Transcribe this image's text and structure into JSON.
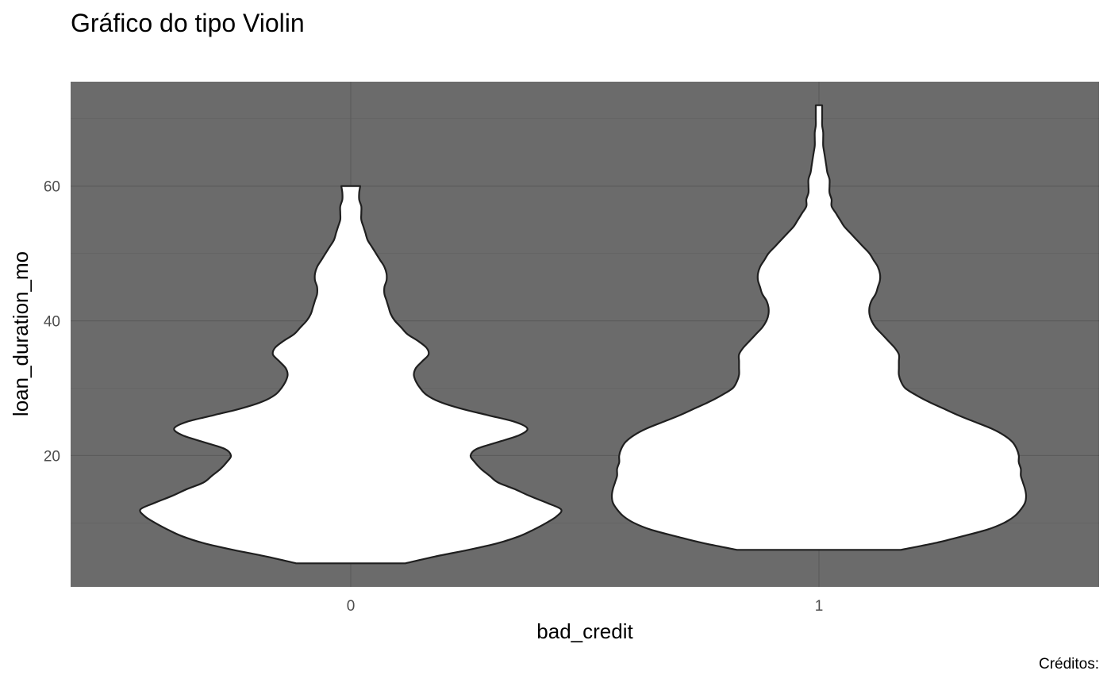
{
  "chart_data": {
    "type": "violin",
    "title": "Gráfico do tipo Violin",
    "xlabel": "bad_credit",
    "ylabel": "loan_duration_mo",
    "caption": "Créditos:",
    "categories": [
      "0",
      "1"
    ],
    "ylim": [
      0.5,
      75.5
    ],
    "y_ticks": [
      20,
      40,
      60
    ],
    "y_minor_ticks": [
      10,
      30,
      50,
      70
    ],
    "grid": true,
    "panel_background": "#6b6b6b",
    "violin_fill": "#ffffff",
    "violin_outline": "#1f1f1f",
    "series": [
      {
        "category": "0",
        "y_min": 4,
        "y_max": 60,
        "density": [
          [
            4,
            0.26
          ],
          [
            5,
            0.4
          ],
          [
            6,
            0.56
          ],
          [
            7,
            0.7
          ],
          [
            8,
            0.8
          ],
          [
            9,
            0.87
          ],
          [
            10,
            0.93
          ],
          [
            11,
            0.98
          ],
          [
            12,
            1.0
          ],
          [
            13,
            0.93
          ],
          [
            14,
            0.85
          ],
          [
            15,
            0.78
          ],
          [
            16,
            0.7
          ],
          [
            17,
            0.66
          ],
          [
            18,
            0.62
          ],
          [
            19,
            0.59
          ],
          [
            20,
            0.57
          ],
          [
            21,
            0.6
          ],
          [
            22,
            0.7
          ],
          [
            23,
            0.8
          ],
          [
            24,
            0.84
          ],
          [
            25,
            0.78
          ],
          [
            26,
            0.65
          ],
          [
            27,
            0.52
          ],
          [
            28,
            0.42
          ],
          [
            29,
            0.36
          ],
          [
            30,
            0.33
          ],
          [
            31,
            0.31
          ],
          [
            32,
            0.3
          ],
          [
            33,
            0.31
          ],
          [
            34,
            0.34
          ],
          [
            35,
            0.37
          ],
          [
            36,
            0.36
          ],
          [
            37,
            0.32
          ],
          [
            38,
            0.27
          ],
          [
            39,
            0.24
          ],
          [
            40,
            0.21
          ],
          [
            41,
            0.19
          ],
          [
            42,
            0.18
          ],
          [
            43,
            0.17
          ],
          [
            44,
            0.16
          ],
          [
            45,
            0.16
          ],
          [
            46,
            0.17
          ],
          [
            47,
            0.17
          ],
          [
            48,
            0.16
          ],
          [
            49,
            0.14
          ],
          [
            50,
            0.12
          ],
          [
            51,
            0.1
          ],
          [
            52,
            0.08
          ],
          [
            53,
            0.07
          ],
          [
            54,
            0.06
          ],
          [
            55,
            0.05
          ],
          [
            56,
            0.05
          ],
          [
            57,
            0.05
          ],
          [
            58,
            0.04
          ],
          [
            59,
            0.04
          ],
          [
            60,
            0.045
          ]
        ]
      },
      {
        "category": "1",
        "y_min": 6,
        "y_max": 72,
        "density": [
          [
            6,
            0.39
          ],
          [
            7,
            0.55
          ],
          [
            8,
            0.68
          ],
          [
            9,
            0.8
          ],
          [
            10,
            0.88
          ],
          [
            11,
            0.93
          ],
          [
            12,
            0.96
          ],
          [
            13,
            0.98
          ],
          [
            14,
            0.985
          ],
          [
            15,
            0.98
          ],
          [
            16,
            0.97
          ],
          [
            17,
            0.96
          ],
          [
            18,
            0.96
          ],
          [
            19,
            0.95
          ],
          [
            20,
            0.95
          ],
          [
            21,
            0.94
          ],
          [
            22,
            0.92
          ],
          [
            23,
            0.88
          ],
          [
            24,
            0.82
          ],
          [
            25,
            0.74
          ],
          [
            26,
            0.66
          ],
          [
            27,
            0.59
          ],
          [
            28,
            0.52
          ],
          [
            29,
            0.46
          ],
          [
            30,
            0.41
          ],
          [
            31,
            0.39
          ],
          [
            32,
            0.38
          ],
          [
            33,
            0.38
          ],
          [
            34,
            0.38
          ],
          [
            35,
            0.38
          ],
          [
            36,
            0.36
          ],
          [
            37,
            0.33
          ],
          [
            38,
            0.3
          ],
          [
            39,
            0.27
          ],
          [
            40,
            0.25
          ],
          [
            41,
            0.24
          ],
          [
            42,
            0.24
          ],
          [
            43,
            0.25
          ],
          [
            44,
            0.27
          ],
          [
            45,
            0.28
          ],
          [
            46,
            0.29
          ],
          [
            47,
            0.29
          ],
          [
            48,
            0.28
          ],
          [
            49,
            0.26
          ],
          [
            50,
            0.24
          ],
          [
            51,
            0.21
          ],
          [
            52,
            0.18
          ],
          [
            53,
            0.15
          ],
          [
            54,
            0.12
          ],
          [
            55,
            0.1
          ],
          [
            56,
            0.08
          ],
          [
            57,
            0.06
          ],
          [
            58,
            0.06
          ],
          [
            59,
            0.05
          ],
          [
            60,
            0.05
          ],
          [
            61,
            0.05
          ],
          [
            62,
            0.04
          ],
          [
            63,
            0.035
          ],
          [
            64,
            0.03
          ],
          [
            65,
            0.025
          ],
          [
            66,
            0.02
          ],
          [
            67,
            0.02
          ],
          [
            68,
            0.02
          ],
          [
            69,
            0.015
          ],
          [
            70,
            0.015
          ],
          [
            71,
            0.015
          ],
          [
            72,
            0.015
          ]
        ]
      }
    ]
  }
}
